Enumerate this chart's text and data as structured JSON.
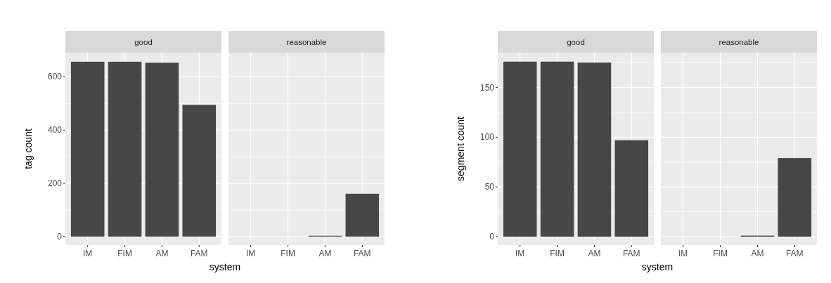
{
  "chart_data": [
    {
      "type": "bar",
      "title": "good",
      "xlabel": "system",
      "ylabel": "tag count",
      "categories": [
        "IM",
        "FIM",
        "AM",
        "FAM"
      ],
      "values": [
        657,
        657,
        653,
        495
      ],
      "color": "#474747",
      "ylim": [
        -32,
        691
      ],
      "yticks": [
        0,
        200,
        400,
        600
      ],
      "grid": true
    },
    {
      "type": "bar",
      "title": "reasonable",
      "categories": [
        "IM",
        "FIM",
        "AM",
        "FAM"
      ],
      "values": [
        0,
        0,
        3,
        161
      ],
      "color": "#474747",
      "ylim": [
        -32,
        691
      ],
      "yticks": [
        0,
        200,
        400,
        600
      ],
      "grid": true,
      "tick_labels": "x"
    },
    {
      "type": "bar",
      "title": "good",
      "xlabel": "system",
      "ylabel": "segment count",
      "categories": [
        "IM",
        "FIM",
        "AM",
        "FAM"
      ],
      "values": [
        176,
        176,
        175,
        97
      ],
      "color": "#474747",
      "ylim": [
        -8.5,
        185
      ],
      "yticks": [
        0,
        50,
        100,
        150
      ],
      "grid": true
    },
    {
      "type": "bar",
      "title": "reasonable",
      "categories": [
        "IM",
        "FIM",
        "AM",
        "FAM"
      ],
      "values": [
        0,
        0,
        1,
        79
      ],
      "color": "#474747",
      "ylim": [
        -8.5,
        185
      ],
      "yticks": [
        0,
        50,
        100,
        150
      ],
      "grid": true,
      "tick_labels": "x"
    }
  ]
}
